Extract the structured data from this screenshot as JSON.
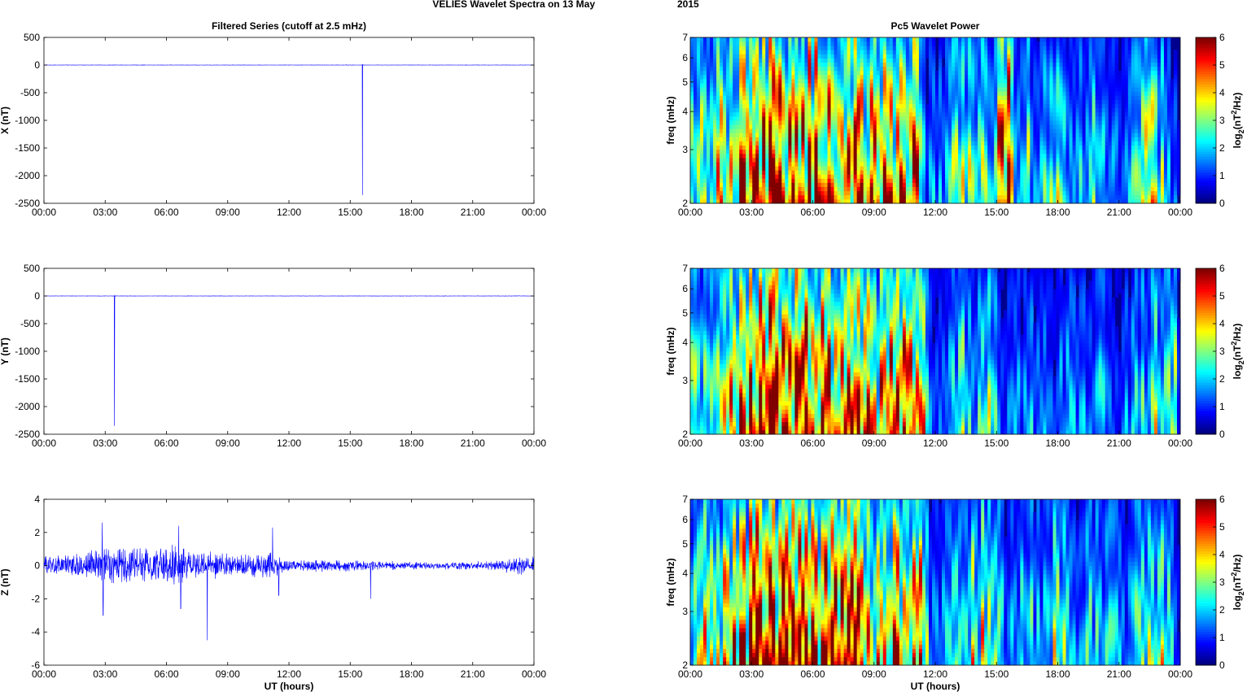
{
  "figure": {
    "title_left": "VELIES Wavelet Spectra on 13 May",
    "title_right": "2015"
  },
  "chart_data": [
    {
      "type": "line",
      "title": "Filtered Series (cutoff at 2.5 mHz)",
      "ylabel": "X (nT)",
      "xlabel": "",
      "xlim": [
        0,
        24
      ],
      "ylim": [
        -2500,
        500
      ],
      "x_ticks": [
        "00:00",
        "03:00",
        "06:00",
        "09:00",
        "12:00",
        "15:00",
        "18:00",
        "21:00",
        "00:00"
      ],
      "y_ticks": [
        "500",
        "0",
        "-500",
        "-1000",
        "-1500",
        "-2000",
        "-2500"
      ],
      "series": [
        {
          "color": "#0000ff",
          "baseline_amplitude": 4,
          "spikes": [
            {
              "x": 15.6,
              "y": -2350
            },
            {
              "x": 15.62,
              "y": 10
            }
          ]
        }
      ]
    },
    {
      "type": "line",
      "title": "",
      "ylabel": "Y (nT)",
      "xlabel": "",
      "xlim": [
        0,
        24
      ],
      "ylim": [
        -2500,
        500
      ],
      "x_ticks": [
        "00:00",
        "03:00",
        "06:00",
        "09:00",
        "12:00",
        "15:00",
        "18:00",
        "21:00",
        "00:00"
      ],
      "y_ticks": [
        "500",
        "0",
        "-500",
        "-1000",
        "-1500",
        "-2000",
        "-2500"
      ],
      "series": [
        {
          "color": "#0000ff",
          "baseline_amplitude": 4,
          "spikes": [
            {
              "x": 3.45,
              "y": -2350
            },
            {
              "x": 3.47,
              "y": 20
            }
          ]
        }
      ]
    },
    {
      "type": "line",
      "title": "",
      "ylabel": "Z (nT)",
      "xlabel": "UT (hours)",
      "xlim": [
        0,
        24
      ],
      "ylim": [
        -6,
        4
      ],
      "x_ticks": [
        "00:00",
        "03:00",
        "06:00",
        "09:00",
        "12:00",
        "15:00",
        "18:00",
        "21:00",
        "00:00"
      ],
      "y_ticks": [
        "4",
        "2",
        "0",
        "-2",
        "-4",
        "-6"
      ],
      "series": [
        {
          "color": "#0000ff",
          "amplitude_envelope": [
            [
              0,
              0.6
            ],
            [
              2,
              0.9
            ],
            [
              3,
              1.4
            ],
            [
              4,
              1.2
            ],
            [
              6,
              1.4
            ],
            [
              7,
              1.1
            ],
            [
              8,
              0.9
            ],
            [
              10,
              0.8
            ],
            [
              11,
              1.1
            ],
            [
              12,
              0.35
            ],
            [
              14,
              0.5
            ],
            [
              16,
              0.3
            ],
            [
              19,
              0.25
            ],
            [
              22,
              0.3
            ],
            [
              23,
              0.6
            ],
            [
              24,
              0.6
            ]
          ],
          "spikes": [
            {
              "x": 2.85,
              "y": 2.6
            },
            {
              "x": 2.9,
              "y": -3.0
            },
            {
              "x": 6.6,
              "y": 2.4
            },
            {
              "x": 6.7,
              "y": -2.6
            },
            {
              "x": 8.0,
              "y": -4.5
            },
            {
              "x": 11.2,
              "y": 2.3
            },
            {
              "x": 11.5,
              "y": -1.8
            },
            {
              "x": 16.0,
              "y": -2.0
            }
          ]
        }
      ]
    },
    {
      "type": "heatmap",
      "title": "Pc5 Wavelet Power",
      "ylabel": "freq (mHz)",
      "xlabel": "",
      "xlim": [
        0,
        24
      ],
      "ylim": [
        2,
        7
      ],
      "yscale": "log",
      "x_ticks": [
        "00:00",
        "03:00",
        "06:00",
        "09:00",
        "12:00",
        "15:00",
        "18:00",
        "21:00",
        "00:00"
      ],
      "y_ticks": [
        "7",
        "6",
        "5",
        "4",
        "3",
        "2"
      ],
      "colorbar_label": "log2(nT^2/Hz)",
      "colorbar_ticks": [
        "6",
        "5",
        "4",
        "3",
        "2",
        "1",
        "0"
      ],
      "clim": [
        0,
        6
      ],
      "activity_envelope": [
        [
          0,
          3.2
        ],
        [
          1.5,
          4.2
        ],
        [
          2.4,
          5.2
        ],
        [
          3.5,
          6.5
        ],
        [
          5,
          6
        ],
        [
          6.5,
          6
        ],
        [
          8,
          5.6
        ],
        [
          9,
          4.8
        ],
        [
          10,
          5.2
        ],
        [
          11,
          5.6
        ],
        [
          11.3,
          5
        ],
        [
          11.6,
          1.5
        ],
        [
          12.5,
          1.8
        ],
        [
          13.3,
          3.8
        ],
        [
          13.8,
          3
        ],
        [
          14.4,
          3.6
        ],
        [
          14.8,
          2
        ],
        [
          15.2,
          6
        ],
        [
          15.7,
          6
        ],
        [
          15.9,
          1.5
        ],
        [
          16.5,
          3.4
        ],
        [
          17,
          1.8
        ],
        [
          17.5,
          2.6
        ],
        [
          18,
          3.4
        ],
        [
          19,
          2
        ],
        [
          20,
          2.8
        ],
        [
          21,
          1.2
        ],
        [
          22,
          2.6
        ],
        [
          22.6,
          4
        ],
        [
          23,
          3
        ],
        [
          24,
          1
        ]
      ]
    },
    {
      "type": "heatmap",
      "title": "",
      "ylabel": "freq (mHz)",
      "xlabel": "",
      "xlim": [
        0,
        24
      ],
      "ylim": [
        2,
        7
      ],
      "yscale": "log",
      "x_ticks": [
        "00:00",
        "03:00",
        "06:00",
        "09:00",
        "12:00",
        "15:00",
        "18:00",
        "21:00",
        "00:00"
      ],
      "y_ticks": [
        "7",
        "6",
        "5",
        "4",
        "3",
        "2"
      ],
      "colorbar_label": "log2(nT^2/Hz)",
      "colorbar_ticks": [
        "6",
        "5",
        "4",
        "3",
        "2",
        "1",
        "0"
      ],
      "clim": [
        0,
        6
      ],
      "activity_envelope": [
        [
          0,
          2.8
        ],
        [
          1.5,
          3.6
        ],
        [
          2.4,
          5
        ],
        [
          3,
          6.5
        ],
        [
          5,
          6.2
        ],
        [
          6.5,
          5.6
        ],
        [
          8,
          5.4
        ],
        [
          9,
          4.6
        ],
        [
          10,
          5
        ],
        [
          11,
          5.4
        ],
        [
          11.4,
          4.6
        ],
        [
          11.7,
          1.2
        ],
        [
          12.5,
          1.6
        ],
        [
          13.3,
          3.2
        ],
        [
          14,
          2.2
        ],
        [
          14.6,
          2.8
        ],
        [
          15.2,
          1.4
        ],
        [
          16,
          1.6
        ],
        [
          17,
          1.8
        ],
        [
          18,
          1.6
        ],
        [
          19,
          1.8
        ],
        [
          20,
          2.2
        ],
        [
          21,
          1.2
        ],
        [
          22,
          2.2
        ],
        [
          22.7,
          3.2
        ],
        [
          23.2,
          2.4
        ],
        [
          23.7,
          3.4
        ],
        [
          24,
          1
        ]
      ]
    },
    {
      "type": "heatmap",
      "title": "",
      "ylabel": "freq (mHz)",
      "xlabel": "UT (hours)",
      "xlim": [
        0,
        24
      ],
      "ylim": [
        2,
        7
      ],
      "yscale": "log",
      "x_ticks": [
        "00:00",
        "03:00",
        "06:00",
        "09:00",
        "12:00",
        "15:00",
        "18:00",
        "21:00",
        "00:00"
      ],
      "y_ticks": [
        "7",
        "6",
        "5",
        "4",
        "3",
        "2"
      ],
      "colorbar_label": "log2(nT^2/Hz)",
      "colorbar_ticks": [
        "6",
        "5",
        "4",
        "3",
        "2",
        "1",
        "0"
      ],
      "clim": [
        0,
        6
      ],
      "activity_envelope": [
        [
          0,
          3.2
        ],
        [
          1.5,
          4.2
        ],
        [
          2.4,
          5
        ],
        [
          3.5,
          6.4
        ],
        [
          5,
          6
        ],
        [
          6.5,
          5.8
        ],
        [
          8,
          5.4
        ],
        [
          9,
          4.8
        ],
        [
          10,
          5.2
        ],
        [
          11,
          5.6
        ],
        [
          11.5,
          4.8
        ],
        [
          11.8,
          1.4
        ],
        [
          12.5,
          1.8
        ],
        [
          13.3,
          3.8
        ],
        [
          13.8,
          3.4
        ],
        [
          14.5,
          3.6
        ],
        [
          15.2,
          2
        ],
        [
          16,
          1.8
        ],
        [
          16.6,
          3
        ],
        [
          17.2,
          2
        ],
        [
          17.8,
          3.2
        ],
        [
          18.5,
          2.2
        ],
        [
          19.5,
          2.4
        ],
        [
          20.5,
          2.6
        ],
        [
          21.2,
          1.4
        ],
        [
          22,
          2.6
        ],
        [
          22.6,
          4
        ],
        [
          23.2,
          3
        ],
        [
          24,
          1
        ]
      ]
    }
  ]
}
